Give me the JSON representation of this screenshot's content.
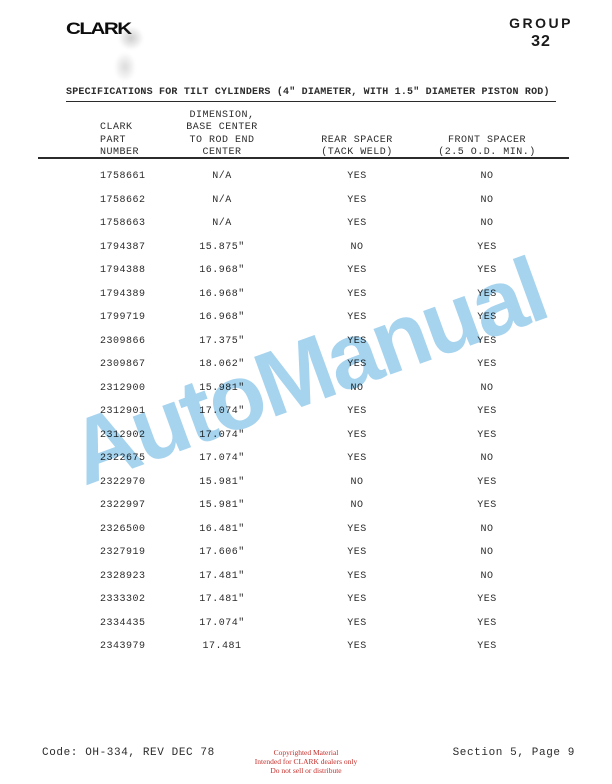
{
  "page": {
    "logo": "CLARK",
    "group_label": "GROUP",
    "group_number": "32",
    "title": "SPECIFICATIONS FOR TILT CYLINDERS (4\" DIAMETER, WITH 1.5\" DIAMETER PISTON ROD)",
    "watermark": "AutoManual",
    "watermark_color": "#a6d3ee"
  },
  "table": {
    "headers": {
      "part": "CLARK\nPART\nNUMBER",
      "dimension": "DIMENSION,\nBASE CENTER\nTO ROD END\nCENTER",
      "rear": "REAR SPACER\n(TACK WELD)",
      "front": "FRONT SPACER\n(2.5 O.D. MIN.)"
    },
    "rows": [
      {
        "part": "1758661",
        "dimension": "N/A",
        "rear": "YES",
        "front": "NO"
      },
      {
        "part": "1758662",
        "dimension": "N/A",
        "rear": "YES",
        "front": "NO"
      },
      {
        "part": "1758663",
        "dimension": "N/A",
        "rear": "YES",
        "front": "NO"
      },
      {
        "part": "1794387",
        "dimension": "15.875\"",
        "rear": "NO",
        "front": "YES"
      },
      {
        "part": "1794388",
        "dimension": "16.968\"",
        "rear": "YES",
        "front": "YES"
      },
      {
        "part": "1794389",
        "dimension": "16.968\"",
        "rear": "YES",
        "front": "YES"
      },
      {
        "part": "1799719",
        "dimension": "16.968\"",
        "rear": "YES",
        "front": "YES"
      },
      {
        "part": "2309866",
        "dimension": "17.375\"",
        "rear": "YES",
        "front": "YES"
      },
      {
        "part": "2309867",
        "dimension": "18.062\"",
        "rear": "YES",
        "front": "YES"
      },
      {
        "part": "2312900",
        "dimension": "15.981\"",
        "rear": "NO",
        "front": "NO"
      },
      {
        "part": "2312901",
        "dimension": "17.074\"",
        "rear": "YES",
        "front": "YES"
      },
      {
        "part": "2312902",
        "dimension": "17.074\"",
        "rear": "YES",
        "front": "YES"
      },
      {
        "part": "2322675",
        "dimension": "17.074\"",
        "rear": "YES",
        "front": "NO"
      },
      {
        "part": "2322970",
        "dimension": "15.981\"",
        "rear": "NO",
        "front": "YES"
      },
      {
        "part": "2322997",
        "dimension": "15.981\"",
        "rear": "NO",
        "front": "YES"
      },
      {
        "part": "2326500",
        "dimension": "16.481\"",
        "rear": "YES",
        "front": "NO"
      },
      {
        "part": "2327919",
        "dimension": "17.606\"",
        "rear": "YES",
        "front": "NO"
      },
      {
        "part": "2328923",
        "dimension": "17.481\"",
        "rear": "YES",
        "front": "NO"
      },
      {
        "part": "2333302",
        "dimension": "17.481\"",
        "rear": "YES",
        "front": "YES"
      },
      {
        "part": "2334435",
        "dimension": "17.074\"",
        "rear": "YES",
        "front": "YES"
      },
      {
        "part": "2343979",
        "dimension": "17.481",
        "rear": "YES",
        "front": "YES"
      }
    ]
  },
  "footer": {
    "code": "Code: OH-334, REV DEC 78",
    "copyright_lines": "Copyrighted Material\nIntended for CLARK dealers only\nDo not sell or distribute",
    "copyright_color": "#c5302c",
    "section": "Section 5, Page 9"
  }
}
